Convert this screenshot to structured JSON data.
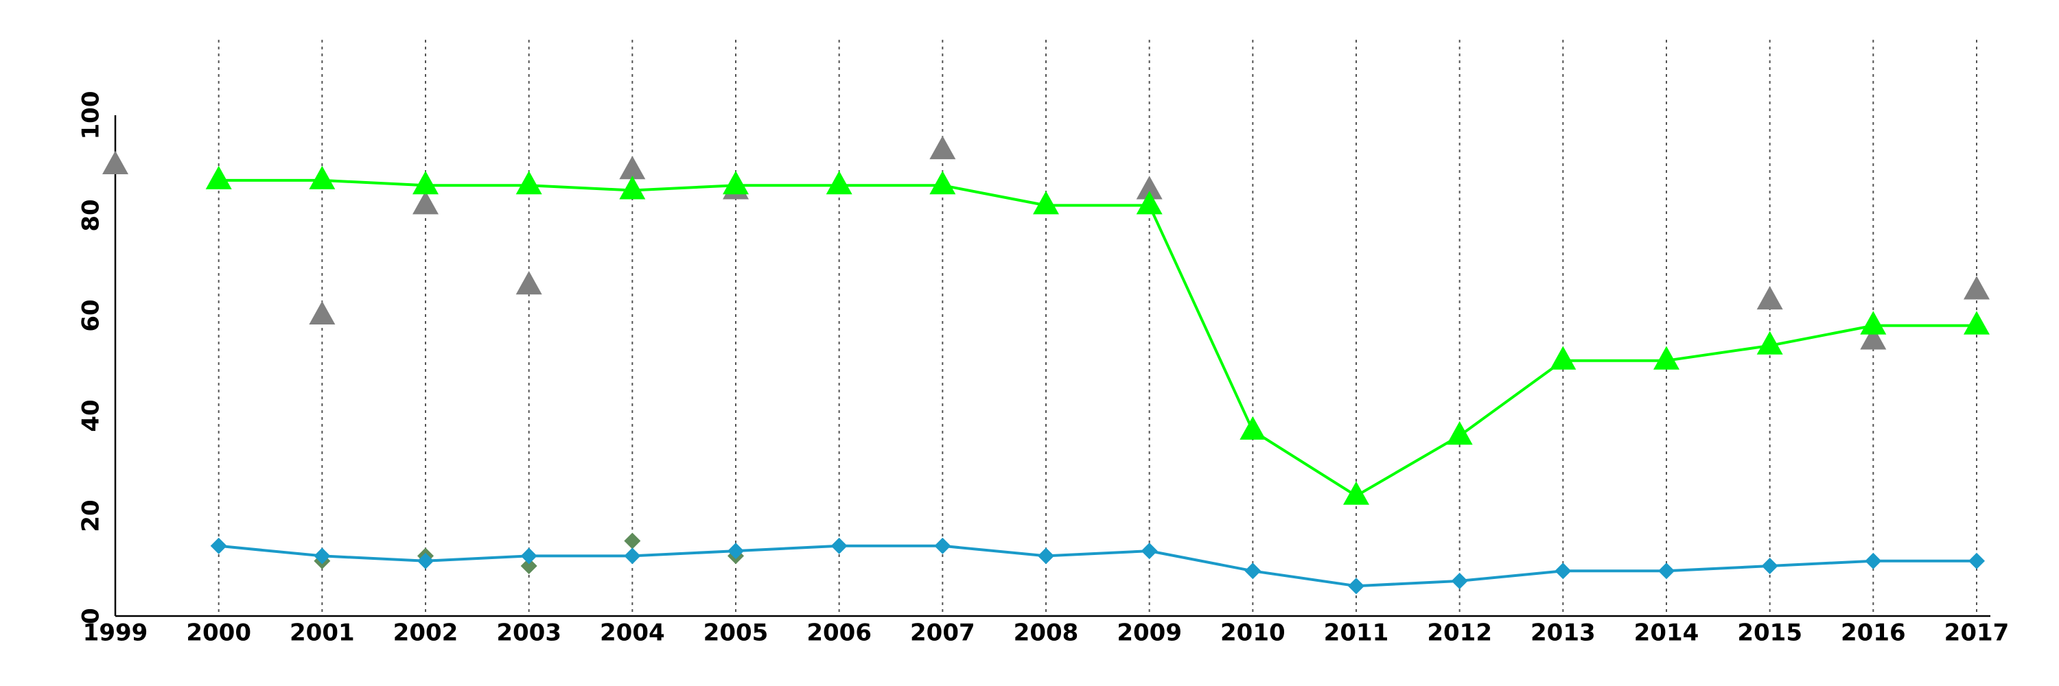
{
  "chart_data": {
    "type": "line",
    "title": "",
    "xlabel": "",
    "ylabel": "",
    "x": [
      2000,
      2001,
      2002,
      2003,
      2004,
      2005,
      2006,
      2007,
      2008,
      2009,
      2010,
      2011,
      2012,
      2013,
      2014,
      2015,
      2016,
      2017
    ],
    "x_ticks": [
      "1999",
      "2000",
      "2001",
      "2002",
      "2003",
      "2004",
      "2005",
      "2006",
      "2007",
      "2008",
      "2009",
      "2010",
      "2011",
      "2012",
      "2013",
      "2014",
      "2015",
      "2016",
      "2017"
    ],
    "y_ticks": [
      "0",
      "20",
      "40",
      "60",
      "80",
      "100"
    ],
    "xlim": [
      1999,
      2017
    ],
    "ylim": [
      0,
      100
    ],
    "grid": "vertical dotted",
    "series": [
      {
        "marker": "triangle",
        "color": "#00ff00",
        "values": [
          87,
          87,
          86,
          86,
          85,
          86,
          86,
          86,
          82,
          82,
          37,
          24,
          36,
          51,
          51,
          54,
          58,
          58
        ]
      },
      {
        "marker": "diamond",
        "color": "#1a9ac9",
        "values": [
          14,
          12,
          11,
          12,
          12,
          13,
          14,
          14,
          12,
          13,
          9,
          6,
          7,
          9,
          9,
          10,
          11,
          11
        ]
      }
    ],
    "scatter": [
      {
        "marker": "triangle",
        "color": "#808080",
        "points": [
          [
            1999,
            90
          ],
          [
            2001,
            60
          ],
          [
            2002,
            82
          ],
          [
            2003,
            66
          ],
          [
            2004,
            89
          ],
          [
            2005,
            85
          ],
          [
            2007,
            93
          ],
          [
            2009,
            85
          ],
          [
            2015,
            63
          ],
          [
            2016,
            55
          ],
          [
            2017,
            65
          ]
        ]
      },
      {
        "marker": "diamond",
        "color": "#5e8c5a",
        "points": [
          [
            2001,
            11
          ],
          [
            2002,
            12
          ],
          [
            2003,
            10
          ],
          [
            2004,
            15
          ],
          [
            2005,
            12
          ]
        ]
      }
    ]
  }
}
